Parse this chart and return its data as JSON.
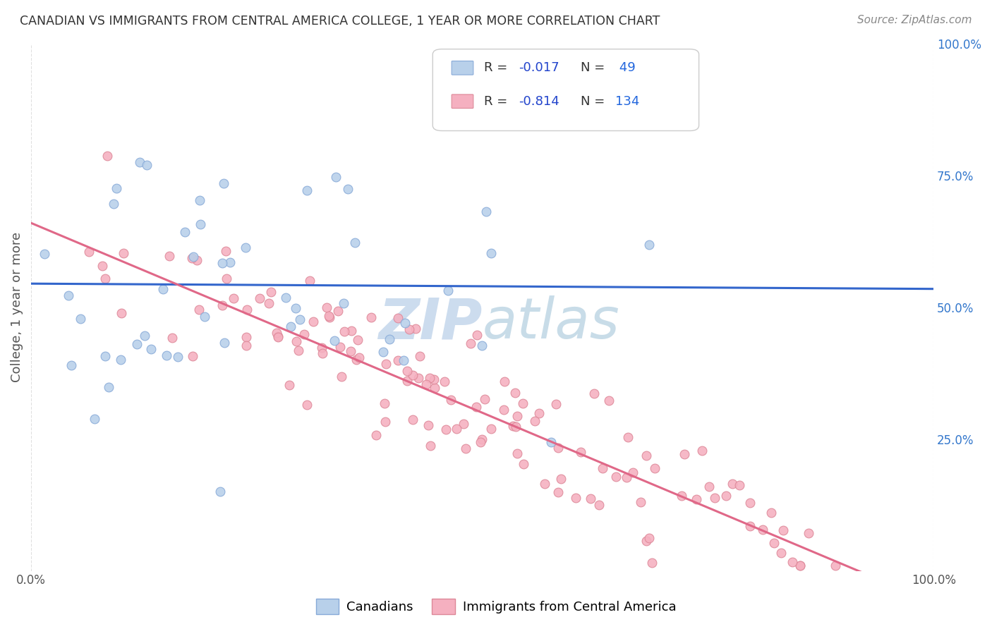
{
  "title": "CANADIAN VS IMMIGRANTS FROM CENTRAL AMERICA COLLEGE, 1 YEAR OR MORE CORRELATION CHART",
  "source": "Source: ZipAtlas.com",
  "ylabel": "College, 1 year or more",
  "blue_R": -0.017,
  "blue_N": 49,
  "pink_R": -0.814,
  "pink_N": 134,
  "blue_color": "#b8d0ea",
  "pink_color": "#f5b0c0",
  "blue_line_color": "#3366cc",
  "pink_line_color": "#e06888",
  "blue_edge_color": "#88aad8",
  "pink_edge_color": "#dd8898",
  "legend_label_blue": "Canadians",
  "legend_label_pink": "Immigrants from Central America",
  "watermark_text": "ZIPAtlas",
  "watermark_color": "#ccdcee",
  "background_color": "#ffffff",
  "grid_color": "#dddddd",
  "xlim": [
    0.0,
    1.0
  ],
  "ylim": [
    0.0,
    1.0
  ],
  "right_y_ticks": [
    0.25,
    0.5,
    0.75,
    1.0
  ],
  "right_y_tick_labels": [
    "25.0%",
    "50.0%",
    "75.0%",
    "100.0%"
  ],
  "title_color": "#333333",
  "source_color": "#888888",
  "axis_label_color": "#555555",
  "tick_color": "#555555",
  "legend_R_color": "#2244cc",
  "legend_N_color": "#2266dd",
  "blue_line_y_intercept": 0.545,
  "blue_line_slope": -0.01,
  "pink_line_y_intercept": 0.66,
  "pink_line_slope": -0.72
}
